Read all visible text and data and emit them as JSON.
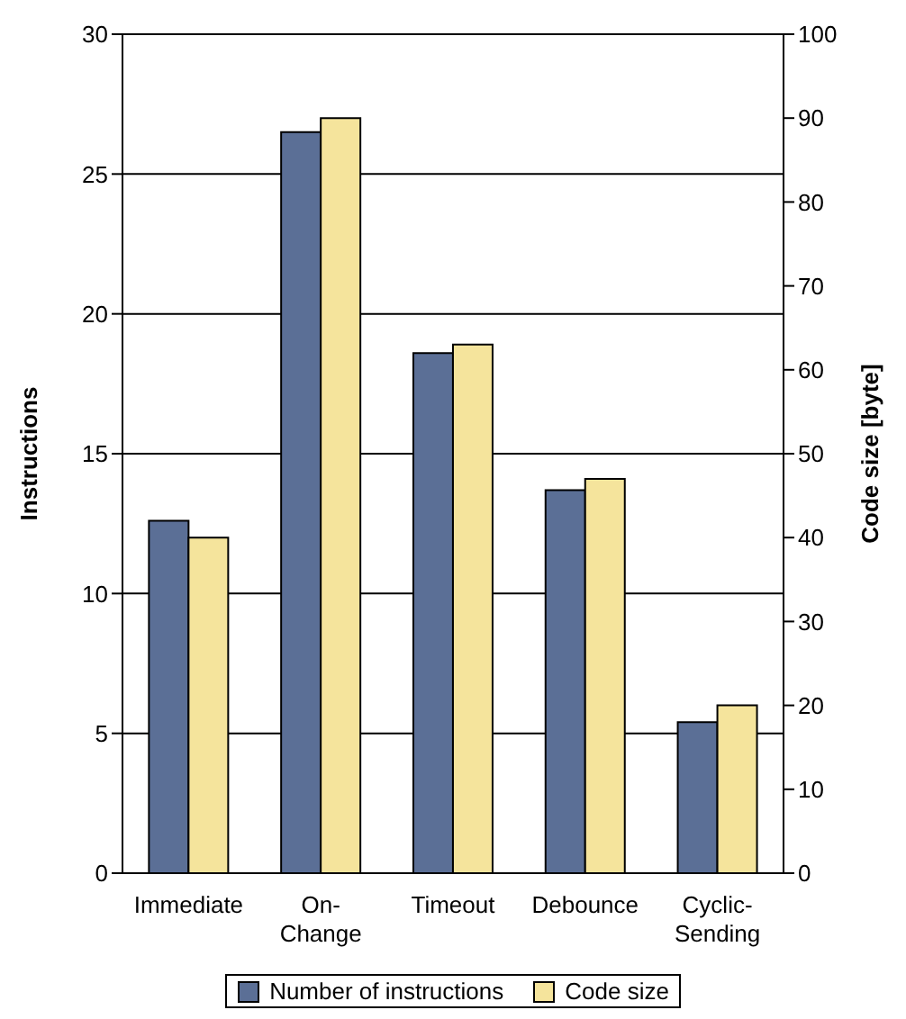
{
  "chart_data": {
    "type": "bar",
    "categories": [
      "Immediate",
      "On-Change",
      "Timeout",
      "Debounce",
      "Cyclic-Sending"
    ],
    "series": [
      {
        "name": "Number of instructions",
        "color": "#5b6f96",
        "values": [
          12.6,
          26.5,
          18.6,
          13.7,
          5.4
        ]
      },
      {
        "name": "Code size",
        "color": "#f5e49c",
        "values": [
          40,
          90,
          63,
          47,
          20
        ],
        "axis": "y2"
      }
    ],
    "ylabel": "Instructions",
    "y2label": "Code size [byte]",
    "ylim": [
      0,
      30
    ],
    "yticks": [
      0,
      5,
      10,
      15,
      20,
      25,
      30
    ],
    "y2lim": [
      0,
      100
    ],
    "y2ticks": [
      0,
      10,
      20,
      30,
      40,
      50,
      60,
      70,
      80,
      90,
      100
    ],
    "grid": "y",
    "legend": "bottom"
  }
}
